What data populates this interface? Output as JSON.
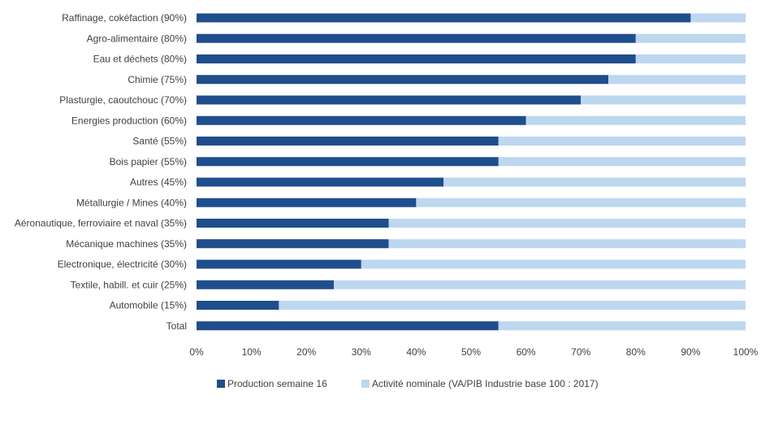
{
  "chart_data": {
    "type": "bar",
    "orientation": "horizontal",
    "stacked": true,
    "categories": [
      "Raffinage, cokéfaction (90%)",
      "Agro-alimentaire (80%)",
      "Eau et déchets (80%)",
      "Chimie (75%)",
      "Plasturgie, caoutchouc (70%)",
      "Energies production (60%)",
      "Santé (55%)",
      "Bois papier (55%)",
      "Autres (45%)",
      "Métallurgie / Mines (40%)",
      "Aéronautique, ferroviaire et naval (35%)",
      "Mécanique machines (35%)",
      "Electronique, électricité (30%)",
      "Textile, habill. et cuir (25%)",
      "Automobile (15%)",
      "Total"
    ],
    "series": [
      {
        "name": "Production semaine 16",
        "color": "#1f4e8c",
        "values": [
          90,
          80,
          80,
          75,
          70,
          60,
          55,
          55,
          45,
          40,
          35,
          35,
          30,
          25,
          15,
          55
        ]
      },
      {
        "name": "Activité nominale (VA/PIB Industrie base 100 : 2017)",
        "color": "#bdd7f0",
        "values": [
          10,
          20,
          20,
          25,
          30,
          40,
          45,
          45,
          55,
          60,
          65,
          65,
          70,
          75,
          85,
          45
        ]
      }
    ],
    "x_ticks": [
      "0%",
      "10%",
      "20%",
      "30%",
      "40%",
      "50%",
      "60%",
      "70%",
      "80%",
      "90%",
      "100%"
    ],
    "xlim": [
      0,
      100
    ],
    "grid": false,
    "legend_position": "bottom",
    "title": "",
    "xlabel": "",
    "ylabel": ""
  }
}
